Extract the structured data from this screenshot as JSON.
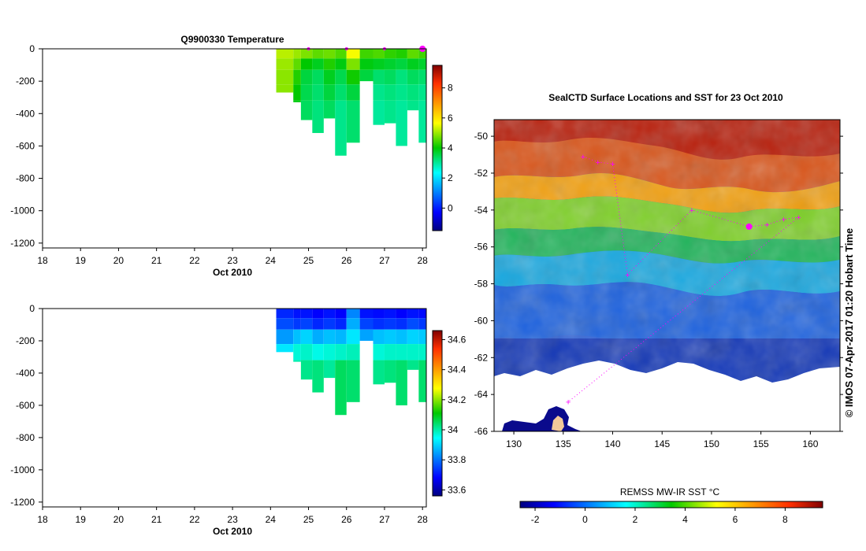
{
  "colors": {
    "axis": "#000000",
    "marker": "#ff00ff",
    "land": "#f2c89a",
    "coast": "#0a0a8c"
  },
  "chart_data": [
    {
      "type": "heatmap",
      "title": "Q9900330  Temperature",
      "xlabel": "Oct 2010",
      "x_ticks": [
        "18",
        "19",
        "20",
        "21",
        "22",
        "23",
        "24",
        "25",
        "26",
        "27",
        "28"
      ],
      "x_tick_values": [
        18,
        19,
        20,
        21,
        22,
        23,
        24,
        25,
        26,
        27,
        28
      ],
      "y_ticks": [
        "0",
        "-200",
        "-400",
        "-600",
        "-800",
        "-1000",
        "-1200"
      ],
      "y_tick_values": [
        0,
        -200,
        -400,
        -600,
        -800,
        -1000,
        -1200
      ],
      "xlim": [
        18,
        28.1
      ],
      "ylim": [
        -1230,
        0
      ],
      "colorbar": {
        "ticks": [
          "0",
          "2",
          "4",
          "6",
          "8"
        ],
        "tick_values": [
          0,
          2,
          4,
          6,
          8
        ],
        "range": [
          -1.5,
          9.5
        ],
        "scale": "jet"
      },
      "profiles": [
        {
          "day": 24.3,
          "max_depth": 270,
          "temps": [
            5.2,
            5.0,
            4.9,
            4.9,
            4.8
          ]
        },
        {
          "day": 24.75,
          "max_depth": 330,
          "temps": [
            5.0,
            4.6,
            4.2,
            4.0,
            3.9
          ]
        },
        {
          "day": 24.95,
          "max_depth": 440,
          "temps": [
            4.8,
            4.0,
            3.6,
            3.5,
            3.4
          ]
        },
        {
          "day": 25.25,
          "max_depth": 520,
          "temps": [
            4.6,
            3.8,
            3.4,
            3.3,
            3.2
          ]
        },
        {
          "day": 25.55,
          "max_depth": 430,
          "temps": [
            4.7,
            4.2,
            3.8,
            3.6,
            3.4
          ]
        },
        {
          "day": 25.85,
          "max_depth": 660,
          "temps": [
            4.5,
            3.9,
            3.5,
            3.3,
            3.1
          ]
        },
        {
          "day": 26.15,
          "max_depth": 580,
          "temps": [
            5.6,
            4.8,
            4.1,
            3.6,
            3.3
          ]
        },
        {
          "day": 26.5,
          "max_depth": 200,
          "temps": [
            4.4,
            3.9,
            3.6,
            3.4,
            3.2
          ]
        },
        {
          "day": 26.85,
          "max_depth": 470,
          "temps": [
            4.5,
            3.8,
            3.3,
            3.1,
            3.0
          ]
        },
        {
          "day": 27.15,
          "max_depth": 460,
          "temps": [
            4.3,
            3.7,
            3.4,
            3.2,
            3.1
          ]
        },
        {
          "day": 27.45,
          "max_depth": 600,
          "temps": [
            4.2,
            3.6,
            3.2,
            3.1,
            3.0
          ]
        },
        {
          "day": 27.75,
          "max_depth": 380,
          "temps": [
            4.6,
            3.8,
            3.4,
            3.2,
            3.1
          ]
        },
        {
          "day": 28.05,
          "max_depth": 580,
          "temps": [
            4.4,
            3.7,
            3.3,
            3.1,
            3.0
          ]
        }
      ],
      "surface_markers_day": [
        25.0,
        26.0,
        27.0,
        28.0
      ]
    },
    {
      "type": "heatmap",
      "title": "",
      "xlabel": "Oct 2010",
      "x_ticks": [
        "18",
        "19",
        "20",
        "21",
        "22",
        "23",
        "24",
        "25",
        "26",
        "27",
        "28"
      ],
      "x_tick_values": [
        18,
        19,
        20,
        21,
        22,
        23,
        24,
        25,
        26,
        27,
        28
      ],
      "y_ticks": [
        "0",
        "-200",
        "-400",
        "-600",
        "-800",
        "-1000",
        "-1200"
      ],
      "y_tick_values": [
        0,
        -200,
        -400,
        -600,
        -800,
        -1000,
        -1200
      ],
      "xlim": [
        18,
        28.1
      ],
      "ylim": [
        -1230,
        0
      ],
      "colorbar": {
        "ticks": [
          "33.6",
          "33.8",
          "34",
          "34.2",
          "34.4",
          "34.6"
        ],
        "tick_values": [
          33.6,
          33.8,
          34.0,
          34.2,
          34.4,
          34.6
        ],
        "range": [
          33.56,
          34.66
        ],
        "scale": "jet"
      },
      "profiles": [
        {
          "day": 24.3,
          "max_depth": 270,
          "sal": [
            33.72,
            33.76,
            33.84,
            33.92,
            33.96
          ]
        },
        {
          "day": 24.75,
          "max_depth": 330,
          "sal": [
            33.7,
            33.74,
            33.88,
            33.97,
            34.0
          ]
        },
        {
          "day": 24.95,
          "max_depth": 440,
          "sal": [
            33.7,
            33.75,
            33.9,
            33.98,
            34.02
          ]
        },
        {
          "day": 25.25,
          "max_depth": 520,
          "sal": [
            33.68,
            33.72,
            33.86,
            33.96,
            34.03
          ]
        },
        {
          "day": 25.55,
          "max_depth": 430,
          "sal": [
            33.7,
            33.74,
            33.88,
            33.97,
            34.01
          ]
        },
        {
          "day": 25.85,
          "max_depth": 660,
          "sal": [
            33.68,
            33.72,
            33.87,
            33.98,
            34.05
          ]
        },
        {
          "day": 26.15,
          "max_depth": 580,
          "sal": [
            33.82,
            33.86,
            33.92,
            33.99,
            34.04
          ]
        },
        {
          "day": 26.5,
          "max_depth": 200,
          "sal": [
            33.7,
            33.75,
            33.85,
            33.95,
            34.0
          ]
        },
        {
          "day": 26.85,
          "max_depth": 470,
          "sal": [
            33.69,
            33.73,
            33.88,
            33.97,
            34.02
          ]
        },
        {
          "day": 27.15,
          "max_depth": 460,
          "sal": [
            33.7,
            33.74,
            33.89,
            33.98,
            34.03
          ]
        },
        {
          "day": 27.45,
          "max_depth": 600,
          "sal": [
            33.68,
            33.73,
            33.88,
            33.98,
            34.04
          ]
        },
        {
          "day": 27.75,
          "max_depth": 380,
          "sal": [
            33.7,
            33.76,
            33.9,
            33.98,
            34.02
          ]
        },
        {
          "day": 28.05,
          "max_depth": 580,
          "sal": [
            33.69,
            33.74,
            33.89,
            33.98,
            34.04
          ]
        }
      ]
    },
    {
      "type": "heatmap",
      "title": "SealCTD Surface Locations and SST for 23 Oct 2010",
      "x_ticks": [
        "130",
        "135",
        "140",
        "145",
        "150",
        "155",
        "160"
      ],
      "x_tick_values": [
        130,
        135,
        140,
        145,
        150,
        155,
        160
      ],
      "y_ticks": [
        "-50",
        "-52",
        "-54",
        "-56",
        "-58",
        "-60",
        "-62",
        "-64",
        "-66"
      ],
      "y_tick_values": [
        -50,
        -52,
        -54,
        -56,
        -58,
        -60,
        -62,
        -64,
        -66
      ],
      "xlim": [
        128,
        163
      ],
      "ylim": [
        -66,
        -49.1
      ],
      "colorbar": {
        "label": "REMSS MW-IR SST °C",
        "ticks": [
          "-2",
          "0",
          "2",
          "4",
          "6",
          "8"
        ],
        "tick_values": [
          -2,
          0,
          2,
          4,
          6,
          8
        ],
        "range": [
          -2.6,
          9.5
        ],
        "scale": "jet"
      },
      "credit": "© IMOS 07-Apr-2017 01:20 Hobart Time",
      "track_points": [
        {
          "lon": 137.0,
          "lat": -51.1
        },
        {
          "lon": 138.5,
          "lat": -51.4
        },
        {
          "lon": 140.0,
          "lat": -51.5
        },
        {
          "lon": 141.5,
          "lat": -57.5
        },
        {
          "lon": 148.0,
          "lat": -54.0
        },
        {
          "lon": 153.8,
          "lat": -54.9
        },
        {
          "lon": 155.6,
          "lat": -54.8
        },
        {
          "lon": 157.3,
          "lat": -54.5
        },
        {
          "lon": 158.8,
          "lat": -54.4
        },
        {
          "lon": 135.5,
          "lat": -64.4
        }
      ],
      "highlight_point": {
        "lon": 153.8,
        "lat": -54.9
      }
    }
  ]
}
